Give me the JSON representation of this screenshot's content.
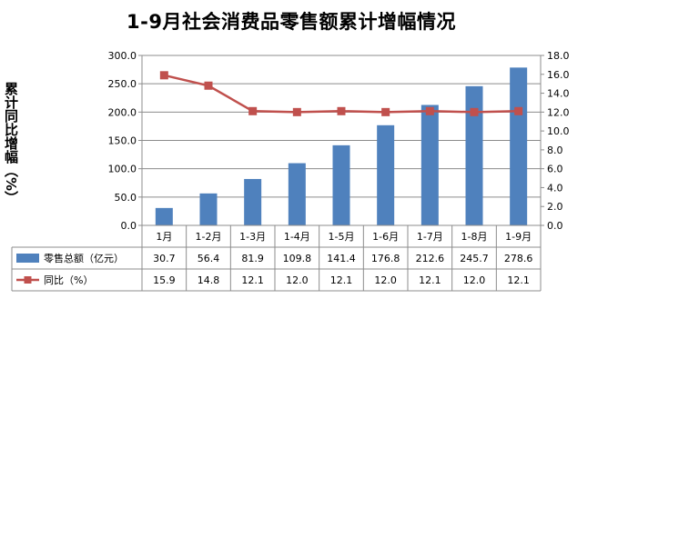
{
  "chart_data": {
    "type": "bar",
    "title": "1-9月社会消费品零售额累计增幅情况",
    "ylabel": "累计同比增幅（%）",
    "categories": [
      "1月",
      "1-2月",
      "1-3月",
      "1-4月",
      "1-5月",
      "1-6月",
      "1-7月",
      "1-8月",
      "1-9月"
    ],
    "series": [
      {
        "name": "零售总额（亿元）",
        "type": "bar",
        "axis": "left",
        "color": "#4F81BD",
        "values": [
          30.7,
          56.4,
          81.9,
          109.8,
          141.4,
          176.8,
          212.6,
          245.7,
          278.6
        ]
      },
      {
        "name": "同比（%）",
        "type": "line",
        "axis": "right",
        "color": "#C0504D",
        "values": [
          15.9,
          14.8,
          12.1,
          12.0,
          12.1,
          12.0,
          12.1,
          12.0,
          12.1
        ]
      }
    ],
    "ylim_left": [
      0,
      300
    ],
    "yticks_left": [
      "0.0",
      "50.0",
      "100.0",
      "150.0",
      "200.0",
      "250.0",
      "300.0"
    ],
    "ylim_right": [
      0,
      18
    ],
    "yticks_right": [
      "0.0",
      "2.0",
      "4.0",
      "6.0",
      "8.0",
      "10.0",
      "12.0",
      "14.0",
      "16.0",
      "18.0"
    ],
    "grid": true,
    "legend": "data-table-below"
  }
}
